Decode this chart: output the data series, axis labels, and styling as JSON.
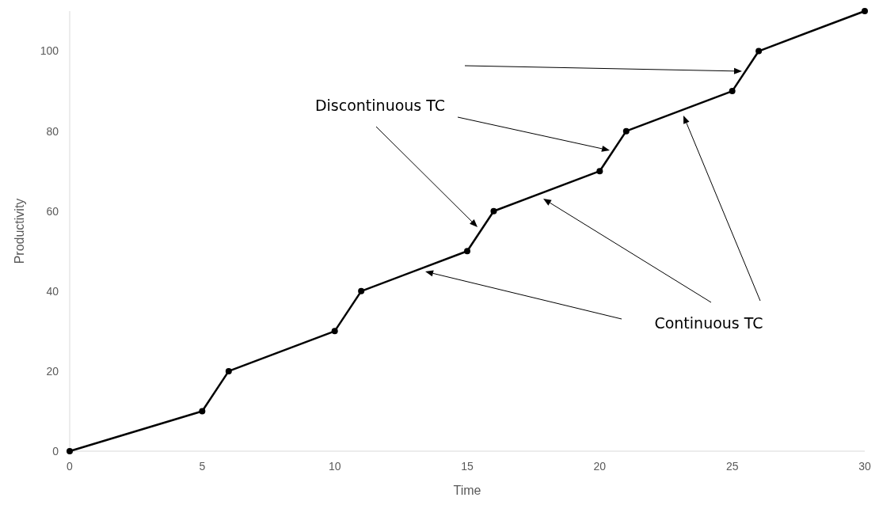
{
  "chart_data": {
    "type": "line",
    "xlabel": "Time",
    "ylabel": "Productivity",
    "x": [
      0,
      5,
      6,
      10,
      11,
      15,
      16,
      20,
      21,
      25,
      26,
      30
    ],
    "series": [
      {
        "color": "#000000",
        "values": [
          0,
          10,
          20,
          30,
          40,
          50,
          60,
          70,
          80,
          90,
          100,
          110
        ]
      }
    ],
    "xlim": [
      0,
      30
    ],
    "xticks": [
      0,
      5,
      10,
      15,
      20,
      25,
      30
    ],
    "ylim": [
      0,
      110
    ],
    "yticks": [
      0,
      20,
      40,
      60,
      80,
      100
    ],
    "grid": false,
    "marker": "circle",
    "line_style": "solid",
    "annotations": [
      "Discontinuous TC",
      "Continuous TC"
    ]
  }
}
